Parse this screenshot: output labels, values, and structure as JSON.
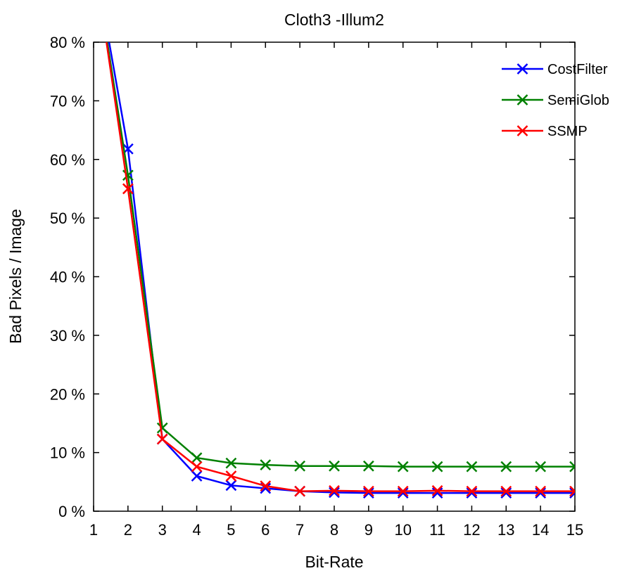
{
  "chart_data": {
    "type": "line",
    "title": "Cloth3 -Illum2",
    "xlabel": "Bit-Rate",
    "ylabel": "Bad Pixels / Image",
    "xlim": [
      1,
      15
    ],
    "ylim": [
      0,
      80
    ],
    "xticks": [
      "1",
      "2",
      "3",
      "4",
      "5",
      "6",
      "7",
      "8",
      "9",
      "10",
      "11",
      "12",
      "13",
      "14",
      "15"
    ],
    "yticks": [
      "0 %",
      "10 %",
      "20 %",
      "30 %",
      "40 %",
      "50 %",
      "60 %",
      "70 %",
      "80 %"
    ],
    "x": [
      1,
      2,
      3,
      4,
      5,
      6,
      7,
      8,
      9,
      10,
      11,
      12,
      13,
      14,
      15
    ],
    "legend_position": "top-right",
    "grid": false,
    "series": [
      {
        "name": "CostFilter",
        "color": "#0000ff",
        "marker": "x",
        "values": [
          95,
          61.8,
          12.3,
          6.0,
          4.4,
          3.9,
          3.4,
          3.2,
          3.1,
          3.1,
          3.1,
          3.1,
          3.1,
          3.1,
          3.1
        ]
      },
      {
        "name": "SemiGlob",
        "color": "#008000",
        "marker": "x",
        "values": [
          95,
          57.3,
          14.2,
          9.1,
          8.2,
          7.9,
          7.7,
          7.7,
          7.7,
          7.6,
          7.6,
          7.6,
          7.6,
          7.6,
          7.6
        ]
      },
      {
        "name": "SSMP",
        "color": "#ff0000",
        "marker": "x",
        "values": [
          95,
          55.0,
          12.3,
          7.6,
          6.0,
          4.3,
          3.4,
          3.5,
          3.4,
          3.4,
          3.5,
          3.4,
          3.4,
          3.4,
          3.4
        ]
      }
    ]
  }
}
